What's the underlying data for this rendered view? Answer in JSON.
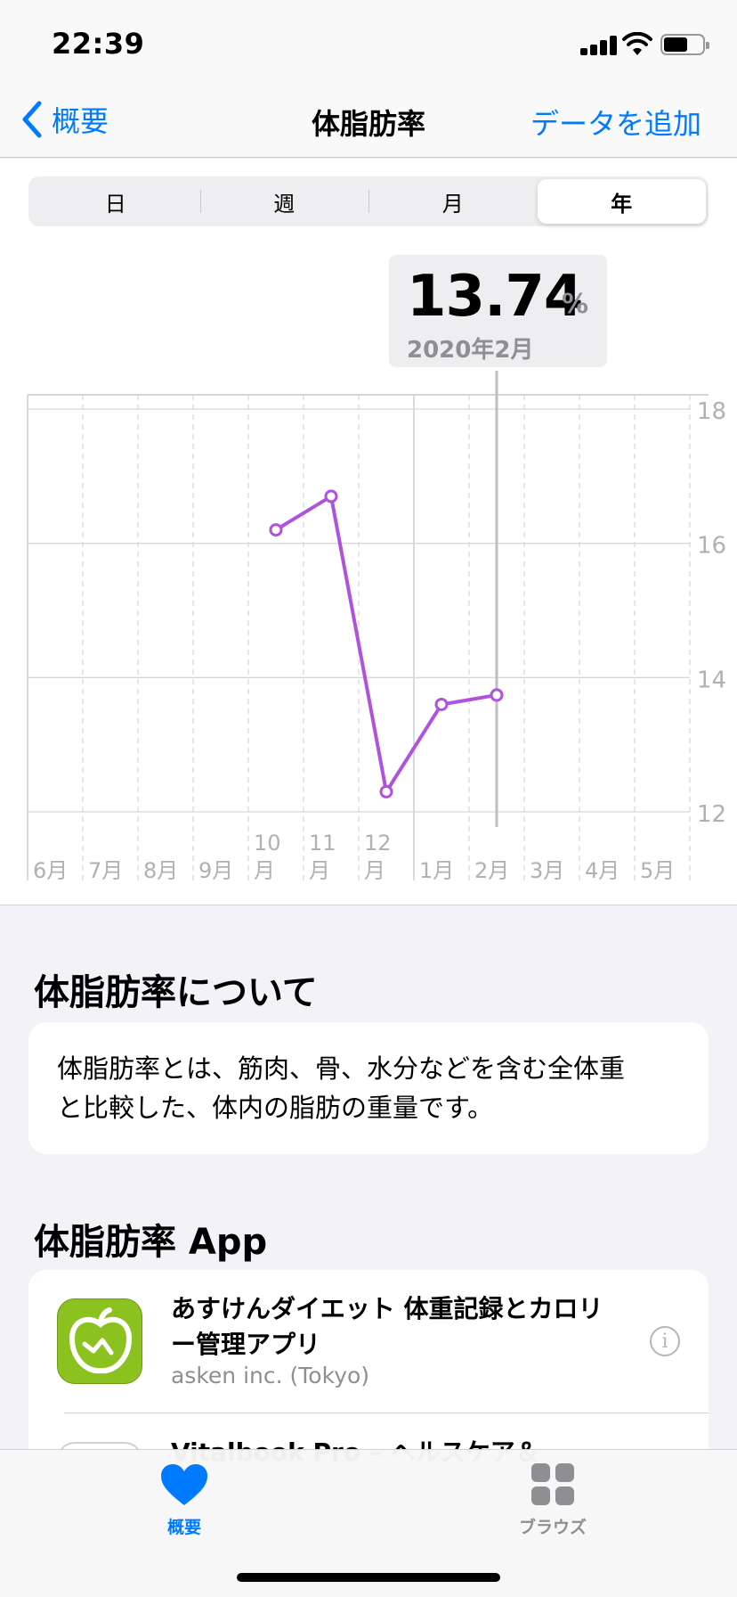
{
  "status_bar": {
    "time": "22:39"
  },
  "nav": {
    "back_label": "概要",
    "title": "体脂肪率",
    "action_label": "データを追加"
  },
  "segments": [
    {
      "label": "日",
      "active": false
    },
    {
      "label": "週",
      "active": false
    },
    {
      "label": "月",
      "active": false
    },
    {
      "label": "年",
      "active": true
    }
  ],
  "callout": {
    "value": "13.74",
    "unit": "%",
    "date": "2020年2月"
  },
  "chart_data": {
    "type": "line",
    "categories": [
      "6月",
      "7月",
      "8月",
      "9月",
      "10月",
      "11月",
      "12月",
      "1月",
      "2月",
      "3月",
      "4月",
      "5月"
    ],
    "x_tick_labels": [
      [
        "6月"
      ],
      [
        "7月"
      ],
      [
        "8月"
      ],
      [
        "9月"
      ],
      [
        "10",
        "月"
      ],
      [
        "11",
        "月"
      ],
      [
        "12",
        "月"
      ],
      [
        "1月"
      ],
      [
        "2月"
      ],
      [
        "3月"
      ],
      [
        "4月"
      ],
      [
        "5月"
      ]
    ],
    "series": [
      {
        "values": [
          null,
          null,
          null,
          null,
          16.2,
          16.7,
          12.3,
          13.6,
          13.74,
          null,
          null,
          null
        ]
      }
    ],
    "ylim": [
      12,
      18
    ],
    "y_ticks": [
      12,
      14,
      16,
      18
    ],
    "y_axis_side": "right",
    "highlighted_category": "2月",
    "line_color": "#af52de",
    "grid": true
  },
  "about": {
    "heading": "体脂肪率について",
    "lines": [
      "体脂肪率とは、筋肉、骨、水分などを含む全体重",
      "と比較した、体内の脂肪の重量です。"
    ]
  },
  "apps": {
    "heading": "体脂肪率 App",
    "items": [
      {
        "name_lines": [
          "あすけんダイエット 体重記録とカロリ",
          "ー管理アプリ"
        ],
        "developer": "asken inc. (Tokyo)",
        "icon": "apple-scale-icon"
      },
      {
        "name_lines": [
          "Vitalbook Pro – ヘルスケア＆"
        ],
        "developer": "",
        "icon": "app-icon"
      }
    ]
  },
  "tabs": [
    {
      "label": "概要",
      "icon": "heart-icon",
      "active": true
    },
    {
      "label": "ブラウズ",
      "icon": "grid-icon",
      "active": false
    }
  ],
  "colors": {
    "accent": "#007aff",
    "chart_line": "#af52de",
    "app_green": "#8cc21f"
  }
}
